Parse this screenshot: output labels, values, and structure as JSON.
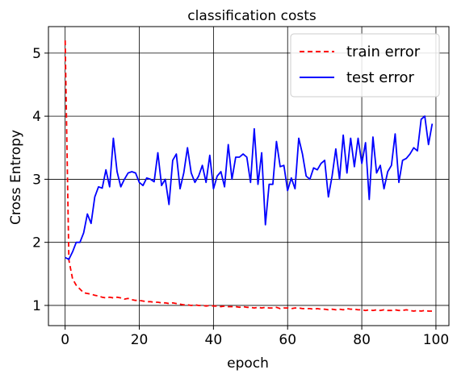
{
  "chart_data": {
    "type": "line",
    "title": "classification costs",
    "xlabel": "epoch",
    "ylabel": "Cross Entropy",
    "xlim": [
      -4.5,
      103.5
    ],
    "ylim": [
      0.68,
      5.42
    ],
    "xticks": [
      0,
      20,
      40,
      60,
      80,
      100
    ],
    "yticks": [
      1,
      2,
      3,
      4,
      5
    ],
    "grid": true,
    "legend_position": "top-right",
    "series": [
      {
        "name": "train error",
        "color": "#ff0000",
        "style": "dashed",
        "x": [
          0,
          1,
          2,
          3,
          4,
          5,
          6,
          7,
          8,
          9,
          10,
          11,
          12,
          13,
          14,
          15,
          16,
          17,
          18,
          19,
          20,
          21,
          22,
          23,
          24,
          25,
          26,
          27,
          28,
          29,
          30,
          31,
          32,
          33,
          34,
          35,
          36,
          37,
          38,
          39,
          40,
          41,
          42,
          43,
          44,
          45,
          46,
          47,
          48,
          49,
          50,
          51,
          52,
          53,
          54,
          55,
          56,
          57,
          58,
          59,
          60,
          61,
          62,
          63,
          64,
          65,
          66,
          67,
          68,
          69,
          70,
          71,
          72,
          73,
          74,
          75,
          76,
          77,
          78,
          79,
          80,
          81,
          82,
          83,
          84,
          85,
          86,
          87,
          88,
          89,
          90,
          91,
          92,
          93,
          94,
          95,
          96,
          97,
          98,
          99
        ],
        "values": [
          5.2,
          1.72,
          1.42,
          1.32,
          1.26,
          1.2,
          1.19,
          1.18,
          1.16,
          1.15,
          1.13,
          1.12,
          1.13,
          1.12,
          1.13,
          1.12,
          1.1,
          1.11,
          1.09,
          1.08,
          1.08,
          1.07,
          1.06,
          1.06,
          1.05,
          1.05,
          1.04,
          1.04,
          1.03,
          1.04,
          1.03,
          1.02,
          1.01,
          1.01,
          1.0,
          1.01,
          1.0,
          1.0,
          0.99,
          1.0,
          0.99,
          0.99,
          0.98,
          0.99,
          0.98,
          0.98,
          0.98,
          0.97,
          0.98,
          0.97,
          0.97,
          0.96,
          0.97,
          0.96,
          0.97,
          0.96,
          0.96,
          0.97,
          0.95,
          0.96,
          0.96,
          0.95,
          0.96,
          0.96,
          0.95,
          0.95,
          0.95,
          0.94,
          0.95,
          0.94,
          0.94,
          0.93,
          0.94,
          0.93,
          0.94,
          0.93,
          0.95,
          0.94,
          0.94,
          0.93,
          0.93,
          0.92,
          0.93,
          0.92,
          0.93,
          0.92,
          0.93,
          0.92,
          0.92,
          0.93,
          0.92,
          0.92,
          0.93,
          0.92,
          0.91,
          0.92,
          0.91,
          0.92,
          0.91,
          0.91
        ]
      },
      {
        "name": "test error",
        "color": "#0000ff",
        "style": "solid",
        "x": [
          0,
          1,
          2,
          3,
          4,
          5,
          6,
          7,
          8,
          9,
          10,
          11,
          12,
          13,
          14,
          15,
          16,
          17,
          18,
          19,
          20,
          21,
          22,
          23,
          24,
          25,
          26,
          27,
          28,
          29,
          30,
          31,
          32,
          33,
          34,
          35,
          36,
          37,
          38,
          39,
          40,
          41,
          42,
          43,
          44,
          45,
          46,
          47,
          48,
          49,
          50,
          51,
          52,
          53,
          54,
          55,
          56,
          57,
          58,
          59,
          60,
          61,
          62,
          63,
          64,
          65,
          66,
          67,
          68,
          69,
          70,
          71,
          72,
          73,
          74,
          75,
          76,
          77,
          78,
          79,
          80,
          81,
          82,
          83,
          84,
          85,
          86,
          87,
          88,
          89,
          90,
          91,
          92,
          93,
          94,
          95,
          96,
          97,
          98,
          99
        ],
        "values": [
          1.76,
          1.73,
          1.85,
          2.0,
          2.0,
          2.15,
          2.45,
          2.3,
          2.72,
          2.88,
          2.86,
          3.15,
          2.88,
          3.65,
          3.12,
          2.88,
          3.0,
          3.1,
          3.12,
          3.1,
          2.95,
          2.9,
          3.02,
          3.0,
          2.96,
          3.42,
          2.9,
          3.0,
          2.6,
          3.3,
          3.4,
          2.85,
          3.1,
          3.5,
          3.1,
          2.95,
          3.05,
          3.22,
          2.95,
          3.38,
          2.85,
          3.05,
          3.12,
          2.88,
          3.55,
          3.0,
          3.35,
          3.35,
          3.4,
          3.35,
          2.95,
          3.8,
          2.92,
          3.42,
          2.28,
          2.92,
          2.92,
          3.6,
          3.2,
          3.22,
          2.82,
          3.02,
          2.85,
          3.65,
          3.4,
          3.05,
          3.0,
          3.18,
          3.15,
          3.25,
          3.3,
          2.72,
          3.05,
          3.48,
          3.0,
          3.7,
          3.1,
          3.65,
          3.2,
          3.65,
          3.25,
          3.58,
          2.68,
          3.67,
          3.1,
          3.22,
          2.85,
          3.12,
          3.22,
          3.72,
          2.95,
          3.3,
          3.33,
          3.4,
          3.5,
          3.45,
          3.95,
          4.0,
          3.55,
          3.88
        ]
      }
    ]
  }
}
